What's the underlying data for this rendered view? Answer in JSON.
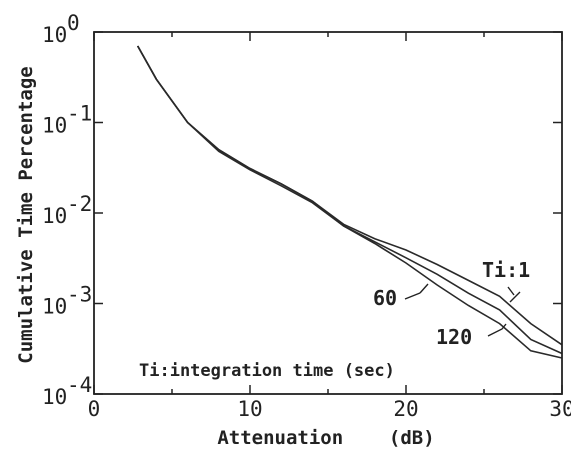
{
  "chart_data": {
    "type": "line",
    "title": "",
    "xlabel": "Attenuation    (dB)",
    "ylabel": "Cumulative Time Percentage",
    "xlim": [
      0,
      30
    ],
    "ylim": [
      0.0001,
      1
    ],
    "yscale": "log",
    "x_ticks": [
      {
        "value": 0,
        "label": "0"
      },
      {
        "value": 10,
        "label": "10"
      },
      {
        "value": 20,
        "label": "20"
      },
      {
        "value": 30,
        "label": "30"
      }
    ],
    "y_ticks": [
      {
        "value": 1,
        "base": "10",
        "exp": "0"
      },
      {
        "value": 0.1,
        "base": "10",
        "exp": "-1"
      },
      {
        "value": 0.01,
        "base": "10",
        "exp": "-2"
      },
      {
        "value": 0.001,
        "base": "10",
        "exp": "-3"
      },
      {
        "value": 0.0001,
        "base": "10",
        "exp": "-4"
      }
    ],
    "grid": false,
    "series": [
      {
        "label": "Ti:1",
        "x": [
          2.8,
          4,
          6,
          8,
          10,
          12,
          14,
          16,
          18,
          20,
          22,
          24,
          26,
          28,
          30
        ],
        "y": [
          0.7,
          0.3,
          0.1,
          0.05,
          0.031,
          0.021,
          0.0135,
          0.0075,
          0.0052,
          0.0039,
          0.0027,
          0.0018,
          0.0012,
          0.0006,
          0.00035
        ]
      },
      {
        "label": "60",
        "x": [
          2.8,
          4,
          6,
          8,
          10,
          12,
          14,
          16,
          18,
          20,
          22,
          24,
          26,
          28,
          30
        ],
        "y": [
          0.7,
          0.3,
          0.1,
          0.05,
          0.031,
          0.021,
          0.0135,
          0.0072,
          0.0048,
          0.0032,
          0.0021,
          0.0013,
          0.00085,
          0.0004,
          0.00028
        ]
      },
      {
        "label": "120",
        "x": [
          2.8,
          4,
          6,
          8,
          10,
          12,
          14,
          16,
          18,
          20,
          22,
          24,
          26,
          28,
          30
        ],
        "y": [
          0.7,
          0.3,
          0.1,
          0.048,
          0.03,
          0.02,
          0.013,
          0.0072,
          0.0046,
          0.0028,
          0.0016,
          0.00095,
          0.0006,
          0.0003,
          0.00025
        ]
      }
    ],
    "annotations": [
      {
        "name": "Ti:1",
        "text": "Ti:1"
      },
      {
        "name": "60",
        "text": "60"
      },
      {
        "name": "120",
        "text": "120"
      },
      {
        "name": "note",
        "text": "Ti:integration time (sec)"
      }
    ]
  }
}
